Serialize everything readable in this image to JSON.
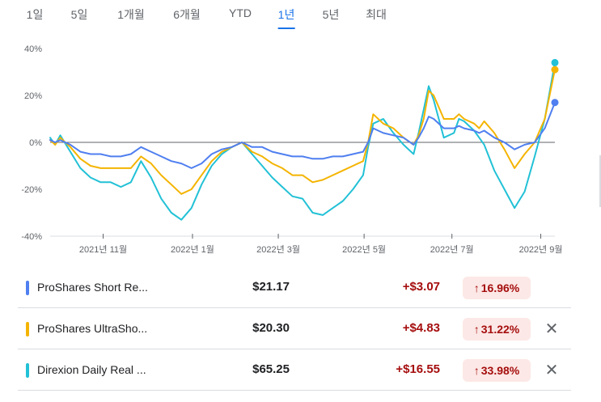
{
  "tabs": [
    "1일",
    "5일",
    "1개월",
    "6개월",
    "YTD",
    "1년",
    "5년",
    "최대"
  ],
  "active_tab": "1년",
  "colors": {
    "blue": "#4f7ff0",
    "yellow": "#f4b400",
    "cyan": "#22c1d6"
  },
  "chart_data": {
    "type": "line",
    "yticks": [
      "40%",
      "20%",
      "0%",
      "-20%",
      "-40%"
    ],
    "ylim": [
      -40,
      40
    ],
    "xlabels": [
      "2021년 11월",
      "2022년 1월",
      "2022년 3월",
      "2022년 5월",
      "2022년 7월",
      "2022년 9월"
    ],
    "baseline": 0,
    "x_range": [
      0,
      100
    ],
    "xlabel_positions": [
      10.5,
      28.2,
      45.2,
      62.2,
      79.6,
      97.2
    ],
    "series": [
      {
        "key": "blue",
        "color": "#4f7ff0",
        "x": [
          0,
          1,
          2,
          4,
          6,
          8,
          10,
          12,
          14,
          16,
          18,
          20,
          22,
          24,
          26,
          28,
          30,
          32,
          34,
          36,
          38,
          40,
          42,
          44,
          46,
          48,
          50,
          52,
          54,
          56,
          58,
          60,
          62,
          63,
          64,
          66,
          68,
          70,
          72,
          73,
          74,
          75,
          76,
          78,
          80,
          81,
          82,
          84,
          85,
          86,
          88,
          90,
          92,
          94,
          96,
          98,
          100
        ],
        "y": [
          1,
          0,
          1,
          -1,
          -4,
          -5,
          -5,
          -6,
          -6,
          -5,
          -2,
          -4,
          -6,
          -8,
          -9,
          -11,
          -9,
          -5,
          -3,
          -2,
          0,
          -2,
          -2,
          -4,
          -5,
          -6,
          -6,
          -7,
          -7,
          -6,
          -6,
          -5,
          -4,
          0,
          6,
          4,
          3,
          2,
          -1,
          2,
          6,
          11,
          10,
          6,
          6,
          7,
          6,
          5,
          4,
          5,
          2,
          0,
          -3,
          -1,
          0,
          6,
          17
        ]
      },
      {
        "key": "yellow",
        "color": "#f4b400",
        "x": [
          0,
          1,
          2,
          4,
          6,
          8,
          10,
          12,
          14,
          16,
          18,
          20,
          22,
          24,
          26,
          28,
          30,
          32,
          34,
          36,
          38,
          40,
          42,
          44,
          46,
          48,
          50,
          52,
          54,
          56,
          58,
          60,
          62,
          63,
          64,
          66,
          68,
          70,
          72,
          73,
          74,
          75,
          76,
          78,
          80,
          81,
          82,
          84,
          85,
          86,
          88,
          90,
          92,
          94,
          96,
          98,
          100
        ],
        "y": [
          1,
          -1,
          2,
          -2,
          -7,
          -10,
          -11,
          -11,
          -11,
          -11,
          -6,
          -9,
          -14,
          -18,
          -22,
          -20,
          -14,
          -8,
          -4,
          -2,
          0,
          -4,
          -6,
          -9,
          -11,
          -14,
          -14,
          -17,
          -16,
          -14,
          -12,
          -10,
          -8,
          0,
          12,
          8,
          6,
          2,
          -1,
          3,
          10,
          22,
          20,
          10,
          10,
          12,
          10,
          8,
          6,
          9,
          4,
          -3,
          -11,
          -5,
          0,
          10,
          31
        ]
      },
      {
        "key": "cyan",
        "color": "#22c1d6",
        "x": [
          0,
          1,
          2,
          4,
          6,
          8,
          10,
          12,
          14,
          16,
          18,
          20,
          22,
          24,
          26,
          28,
          30,
          32,
          34,
          36,
          38,
          40,
          42,
          44,
          46,
          48,
          50,
          52,
          54,
          56,
          58,
          60,
          62,
          63,
          64,
          66,
          68,
          70,
          72,
          73,
          74,
          75,
          76,
          78,
          80,
          81,
          82,
          84,
          85,
          86,
          88,
          90,
          92,
          94,
          96,
          98,
          100
        ],
        "y": [
          2,
          -1,
          3,
          -4,
          -11,
          -15,
          -17,
          -17,
          -19,
          -17,
          -8,
          -15,
          -24,
          -30,
          -33,
          -28,
          -18,
          -10,
          -5,
          -2,
          0,
          -5,
          -10,
          -15,
          -19,
          -23,
          -24,
          -30,
          -31,
          -28,
          -25,
          -20,
          -14,
          -2,
          8,
          10,
          4,
          -1,
          -5,
          4,
          14,
          24,
          18,
          2,
          4,
          10,
          9,
          5,
          2,
          -1,
          -12,
          -20,
          -28,
          -21,
          -6,
          10,
          34
        ]
      }
    ]
  },
  "rows": [
    {
      "color": "#4f7ff0",
      "name": "ProShares Short Re...",
      "price": "$21.17",
      "change": "+$3.07",
      "pct": "16.96%",
      "closable": false
    },
    {
      "color": "#f4b400",
      "name": "ProShares UltraSho...",
      "price": "$20.30",
      "change": "+$4.83",
      "pct": "31.22%",
      "closable": true
    },
    {
      "color": "#22c1d6",
      "name": "Direxion Daily Real ...",
      "price": "$65.25",
      "change": "+$16.55",
      "pct": "33.98%",
      "closable": true
    }
  ],
  "icons": {
    "close": "close-icon",
    "arrow": "arrow-up-icon"
  }
}
